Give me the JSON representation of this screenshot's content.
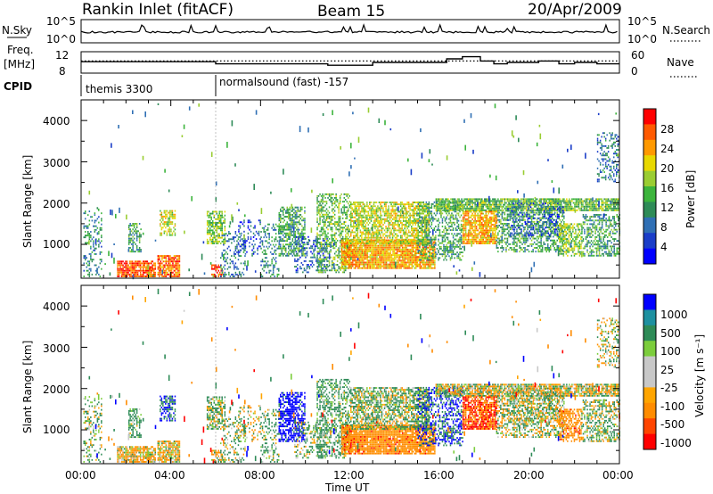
{
  "header": {
    "title": "Rankin Inlet (fitACF)",
    "beam": "Beam 15",
    "date": "20/Apr/2009"
  },
  "noise_panel": {
    "left_label": "N.Sky",
    "left_ticks": [
      "10^5",
      "10^0"
    ],
    "right_ticks": [
      "10^5",
      "10^0"
    ],
    "right_label": "N.Search"
  },
  "freq_panel": {
    "left_label_1": "Freq.",
    "left_label_2": "[MHz]",
    "left_ticks": [
      "12",
      "8"
    ],
    "right_ticks": [
      "60",
      "0"
    ],
    "right_label": "Nave"
  },
  "cpid": {
    "label": "CPID",
    "programs": [
      {
        "name": "themis 3300",
        "start_hour": 0
      },
      {
        "name": "normalsound (fast) -157",
        "start_hour": 6.0
      }
    ]
  },
  "power_panel": {
    "ylabel": "Slant Range [km]",
    "yticks": [
      "4000",
      "3000",
      "2000",
      "1000"
    ],
    "colorbar_label": "Power [dB]",
    "colorbar_ticks": [
      "28",
      "24",
      "20",
      "16",
      "12",
      "8",
      "4"
    ]
  },
  "velocity_panel": {
    "ylabel": "Slant Range [km]",
    "yticks": [
      "4000",
      "3000",
      "2000",
      "1000"
    ],
    "colorbar_label": "Velocity [m s⁻¹]",
    "colorbar_ticks": [
      "1000",
      "500",
      "100",
      "25",
      "-25",
      "-100",
      "-500",
      "-1000"
    ]
  },
  "xaxis": {
    "label": "Time UT",
    "ticks": [
      "00:00",
      "04:00",
      "08:00",
      "12:00",
      "16:00",
      "20:00",
      "00:00"
    ]
  },
  "colors": {
    "power_scale": [
      "#0000ff",
      "#1a3dc8",
      "#2f6fb4",
      "#2e8b57",
      "#3cb43c",
      "#9acd32",
      "#e8d800",
      "#ff9900",
      "#ff5a00",
      "#ff0000"
    ],
    "velocity_scale": [
      "#ff0000",
      "#ff4500",
      "#ff8c00",
      "#ffa500",
      "#c8c8c8",
      "#c8c8c8",
      "#7ccd3c",
      "#2e8b57",
      "#1e90a0",
      "#0000ff"
    ]
  },
  "chart_data": {
    "type": "heatmap",
    "x_unit": "hours UT",
    "xlim": [
      0,
      24
    ],
    "ylim_km": [
      180,
      4500
    ],
    "power_range_db": [
      0,
      30
    ],
    "velocity_range_ms": [
      -1000,
      1000
    ],
    "frequency_mhz": {
      "segments": [
        {
          "start": 0.0,
          "end": 6.0,
          "value": 11.2
        },
        {
          "start": 6.0,
          "end": 7.0,
          "value": 10.6
        },
        {
          "start": 7.0,
          "end": 11.0,
          "value": 10.6
        },
        {
          "start": 11.0,
          "end": 13.0,
          "value": 10.2
        },
        {
          "start": 13.0,
          "end": 16.3,
          "value": 11.0
        },
        {
          "start": 16.3,
          "end": 17.0,
          "value": 12.0
        },
        {
          "start": 17.0,
          "end": 17.8,
          "value": 12.6
        },
        {
          "start": 17.8,
          "end": 18.4,
          "value": 11.4
        },
        {
          "start": 18.4,
          "end": 19.0,
          "value": 10.6
        },
        {
          "start": 19.0,
          "end": 20.4,
          "value": 11.0
        },
        {
          "start": 20.4,
          "end": 21.3,
          "value": 11.4
        },
        {
          "start": 21.3,
          "end": 22.0,
          "value": 10.6
        },
        {
          "start": 22.0,
          "end": 23.0,
          "value": 11.0
        },
        {
          "start": 23.0,
          "end": 24.0,
          "value": 10.6
        }
      ],
      "nave_level": 11.4
    },
    "echo_regions": [
      {
        "t0": 0.1,
        "t1": 0.9,
        "r0": 200,
        "r1": 1800,
        "p": 10,
        "v": 100,
        "d": 0.28
      },
      {
        "t0": 1.6,
        "t1": 3.3,
        "r0": 200,
        "r1": 600,
        "p": 26,
        "v": -100,
        "d": 0.85
      },
      {
        "t0": 2.1,
        "t1": 2.7,
        "r0": 800,
        "r1": 1500,
        "p": 12,
        "v": 200,
        "d": 0.5
      },
      {
        "t0": 3.4,
        "t1": 4.4,
        "r0": 200,
        "r1": 700,
        "p": 25,
        "v": -100,
        "d": 0.85
      },
      {
        "t0": 3.5,
        "t1": 4.2,
        "r0": 1200,
        "r1": 1800,
        "p": 18,
        "v": 500,
        "d": 0.6
      },
      {
        "t0": 5.6,
        "t1": 6.4,
        "r0": 1000,
        "r1": 1800,
        "p": 16,
        "v": 100,
        "d": 0.65
      },
      {
        "t0": 5.8,
        "t1": 6.3,
        "r0": 200,
        "r1": 500,
        "p": 26,
        "v": -100,
        "d": 0.6
      },
      {
        "t0": 6.2,
        "t1": 7.3,
        "r0": 200,
        "r1": 1300,
        "p": 8,
        "v": 100,
        "d": 0.3
      },
      {
        "t0": 7.0,
        "t1": 8.0,
        "r0": 700,
        "r1": 1600,
        "p": 6,
        "v": -25,
        "d": 0.25
      },
      {
        "t0": 8.0,
        "t1": 8.9,
        "r0": 200,
        "r1": 1500,
        "p": 10,
        "v": 150,
        "d": 0.3
      },
      {
        "t0": 8.8,
        "t1": 10.0,
        "r0": 700,
        "r1": 1900,
        "p": 12,
        "v": 700,
        "d": 0.6
      },
      {
        "t0": 9.5,
        "t1": 11.0,
        "r0": 300,
        "r1": 1200,
        "p": 6,
        "v": 100,
        "d": 0.3
      },
      {
        "t0": 10.5,
        "t1": 12.0,
        "r0": 300,
        "r1": 2200,
        "p": 14,
        "v": 200,
        "d": 0.5
      },
      {
        "t0": 11.6,
        "t1": 15.8,
        "r0": 400,
        "r1": 1100,
        "p": 22,
        "v": -300,
        "d": 0.9
      },
      {
        "t0": 12.0,
        "t1": 15.5,
        "r0": 1000,
        "r1": 2000,
        "p": 18,
        "v": 100,
        "d": 0.7
      },
      {
        "t0": 15.0,
        "t1": 17.0,
        "r0": 600,
        "r1": 2000,
        "p": 12,
        "v": 500,
        "d": 0.45
      },
      {
        "t0": 15.8,
        "t1": 24.0,
        "r0": 1800,
        "r1": 2100,
        "p": 14,
        "v": 0,
        "d": 0.85
      },
      {
        "t0": 17.0,
        "t1": 18.5,
        "r0": 1000,
        "r1": 1800,
        "p": 22,
        "v": -500,
        "d": 0.8
      },
      {
        "t0": 18.5,
        "t1": 21.5,
        "r0": 800,
        "r1": 1800,
        "p": 12,
        "v": 50,
        "d": 0.5
      },
      {
        "t0": 19.0,
        "t1": 21.5,
        "r0": 1200,
        "r1": 2000,
        "p": 6,
        "v": 0,
        "d": 0.3
      },
      {
        "t0": 21.3,
        "t1": 22.3,
        "r0": 700,
        "r1": 1500,
        "p": 16,
        "v": -300,
        "d": 0.6
      },
      {
        "t0": 22.3,
        "t1": 24.0,
        "r0": 700,
        "r1": 1700,
        "p": 12,
        "v": 100,
        "d": 0.5
      },
      {
        "t0": 23.0,
        "t1": 24.0,
        "r0": 2500,
        "r1": 3700,
        "p": 8,
        "v": 0,
        "d": 0.3
      }
    ]
  }
}
